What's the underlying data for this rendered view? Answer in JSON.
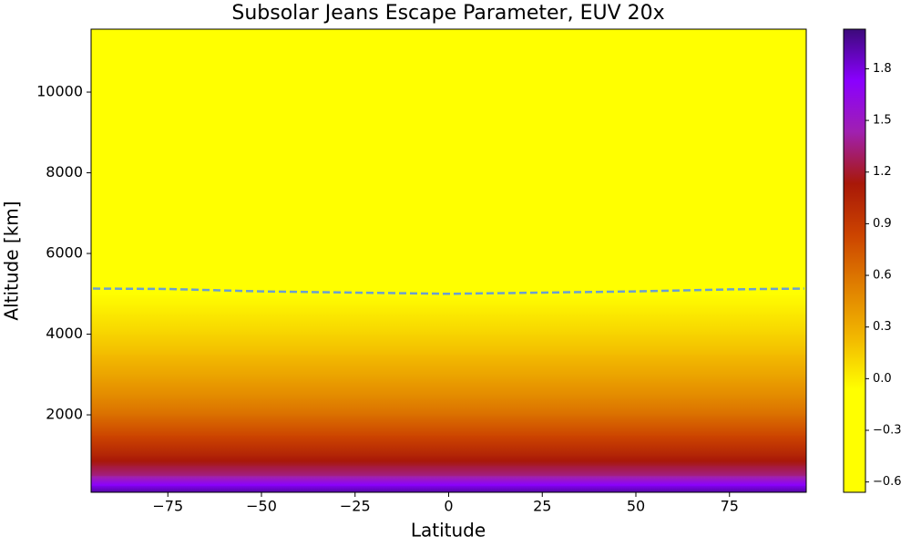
{
  "chart_data": {
    "type": "contour",
    "title": "Subsolar Jeans Escape Parameter, EUV 20x",
    "xlabel": "Latitude",
    "ylabel": "Altitude [km]",
    "xlim": [
      -95.5,
      95.5
    ],
    "ylim": [
      80,
      11560
    ],
    "xticks": [
      {
        "value": -75,
        "label": "−75"
      },
      {
        "value": -50,
        "label": "−50"
      },
      {
        "value": -25,
        "label": "−25"
      },
      0,
      25,
      50,
      75
    ],
    "yticks": [
      2000,
      4000,
      6000,
      8000,
      10000
    ],
    "altitude": [
      80,
      250,
      500,
      750,
      1000,
      1500,
      2000,
      2500,
      3000,
      3500,
      4000,
      4500,
      5000,
      6000,
      7000,
      8000,
      9000,
      10000,
      11560
    ],
    "values": [
      1.95,
      1.75,
      1.35,
      1.2,
      1.05,
      0.82,
      0.62,
      0.47,
      0.34,
      0.22,
      0.12,
      0.03,
      -0.06,
      -0.2,
      -0.32,
      -0.42,
      -0.5,
      -0.57,
      -0.65
    ],
    "colormap": [
      "#ffff00",
      "#ffff00",
      "#ffff00",
      "#f2b800",
      "#e08000",
      "#cc4400",
      "#a81808",
      "#a020b0",
      "#8a00ff",
      "#3c0a7a"
    ],
    "clim": [
      -0.66,
      2.03
    ],
    "cticks": [
      {
        "value": -0.6,
        "label": "−0.6"
      },
      {
        "value": -0.3,
        "label": "−0.3"
      },
      {
        "value": 0,
        "label": "0.0"
      },
      0.3,
      0.6,
      0.9,
      1.2,
      1.5,
      1.8
    ],
    "line": {
      "x": [
        -95,
        -75,
        -50,
        -25,
        0,
        25,
        50,
        75,
        95
      ],
      "y": [
        5130,
        5120,
        5060,
        5030,
        5000,
        5030,
        5060,
        5110,
        5130
      ],
      "color": "#6a9fd0",
      "dashed": true
    }
  }
}
